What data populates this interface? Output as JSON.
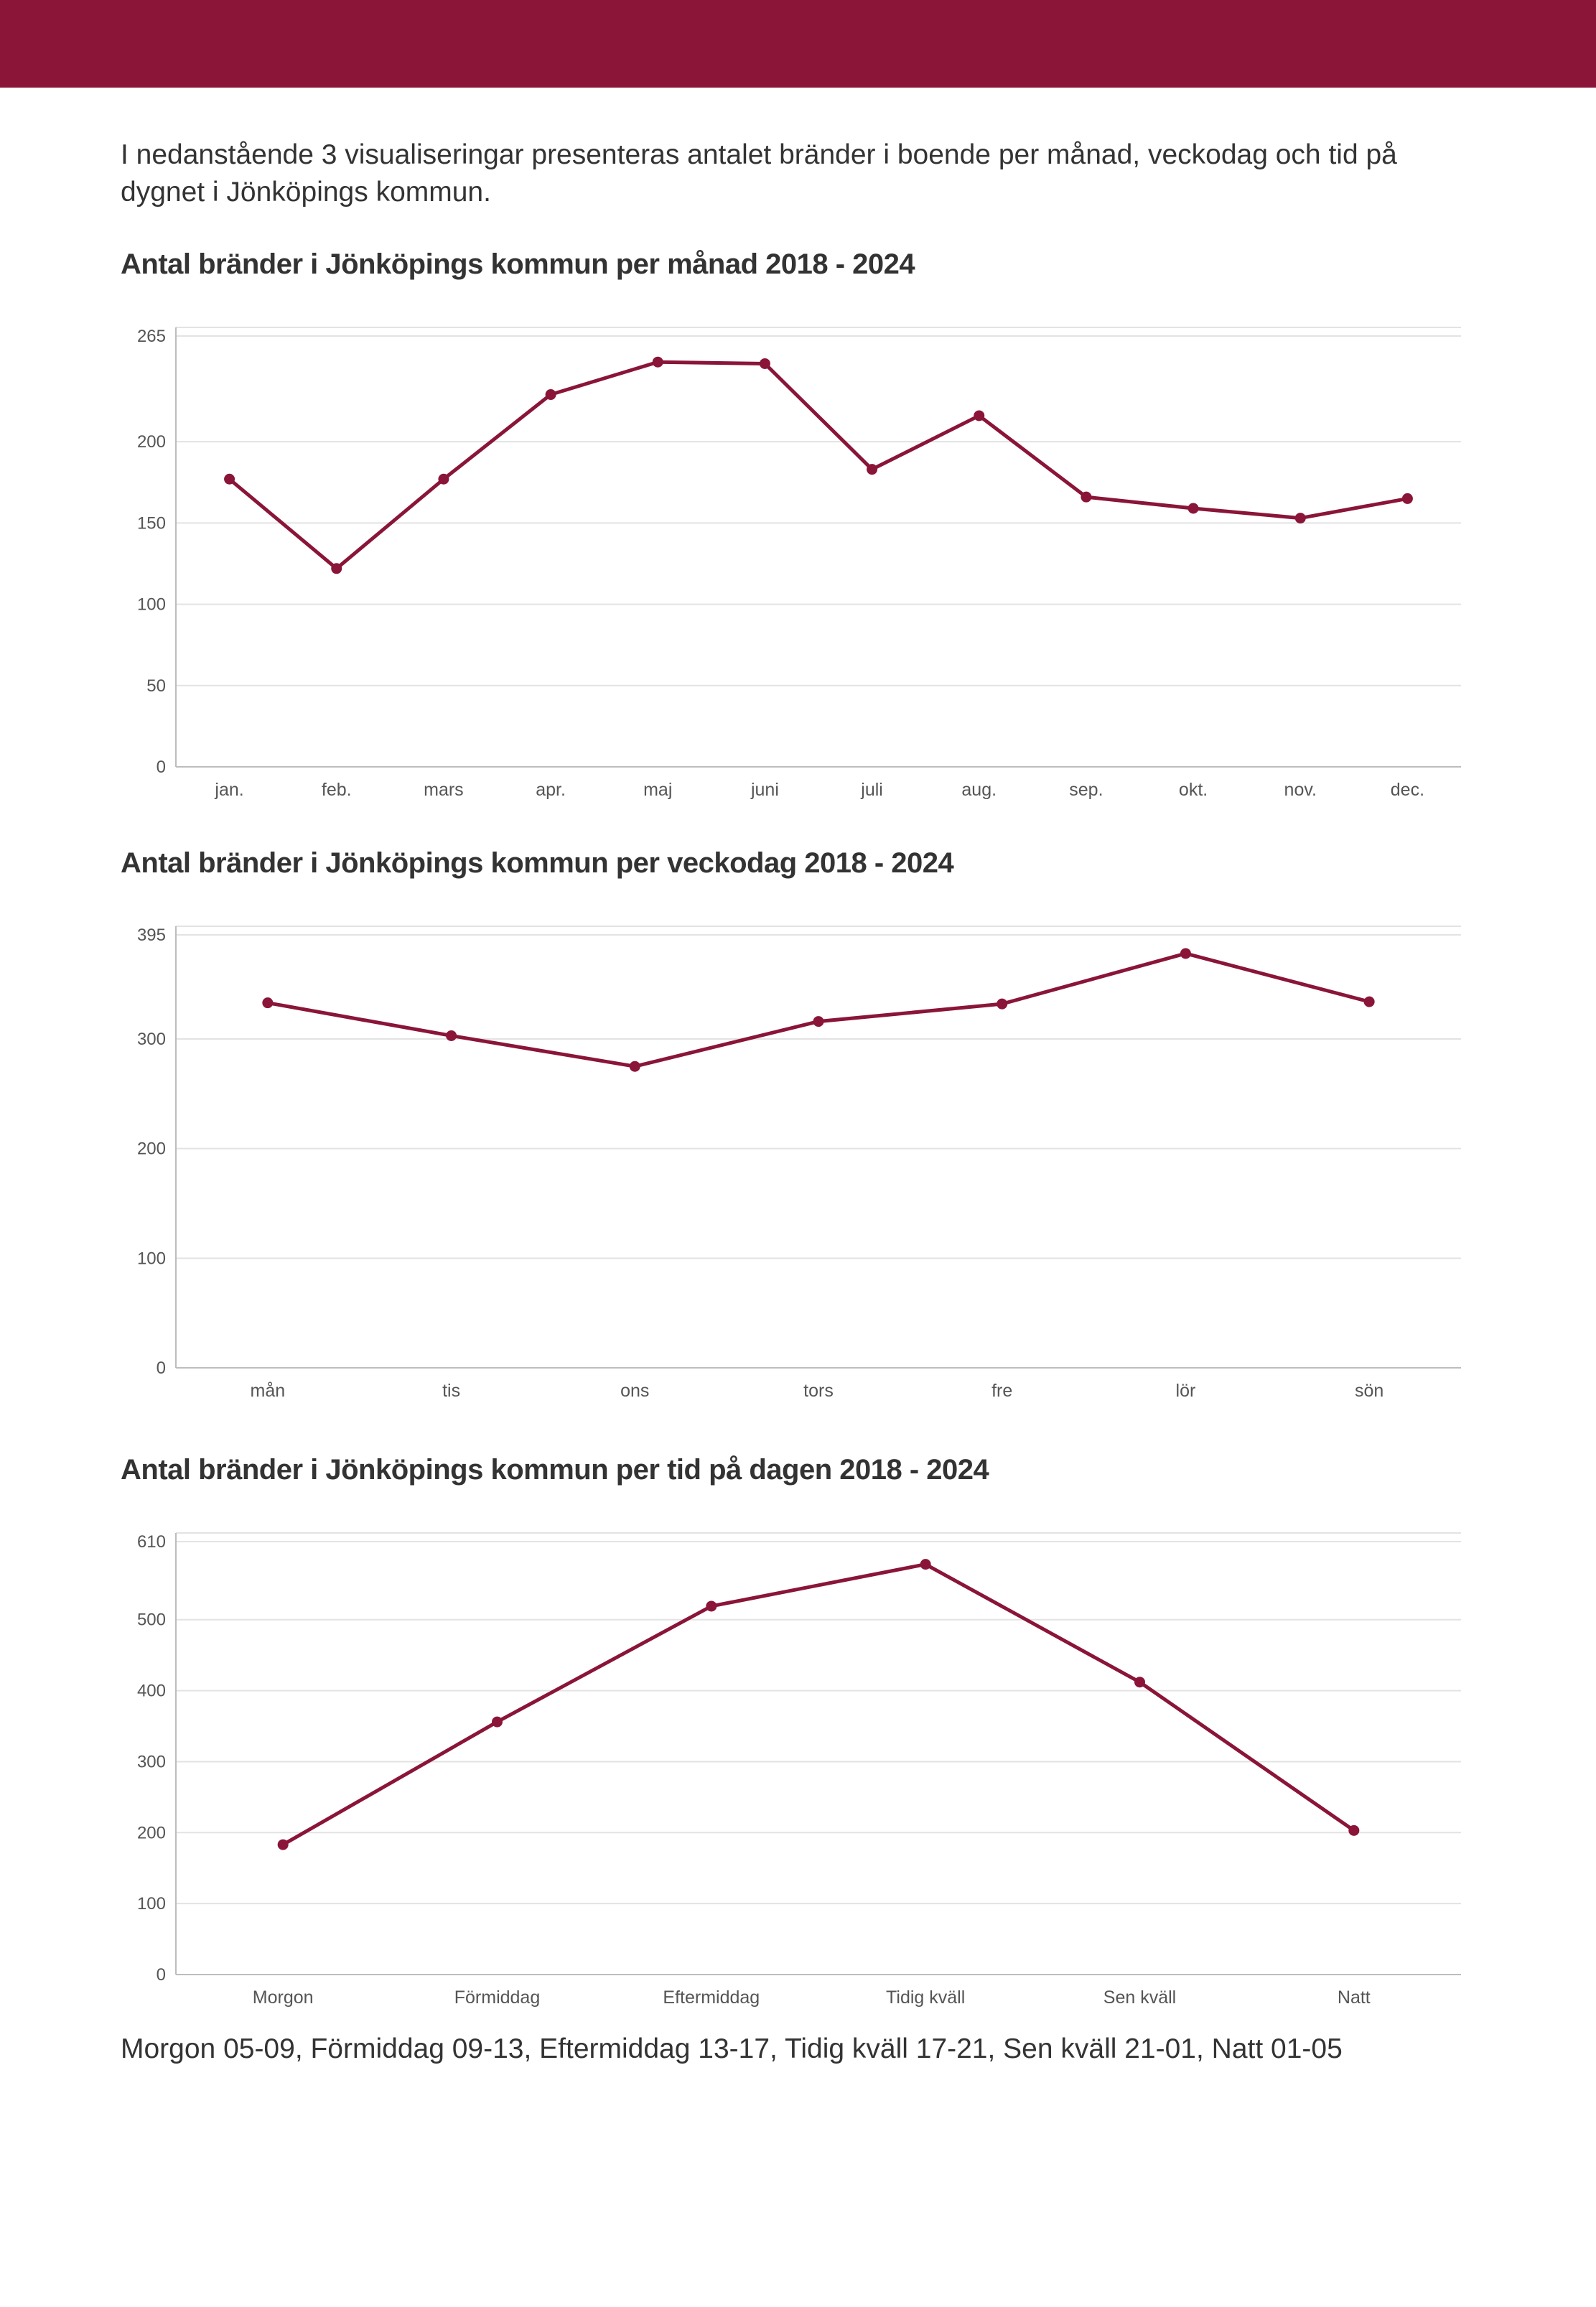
{
  "intro": "I nedanstående 3 visualiseringar presenteras antalet bränder i boende per månad, veckodag och tid på dygnet i Jönköpings kommun.",
  "colors": {
    "accent": "#8a1538",
    "line": "#8a1538",
    "grid": "#e3e3e3",
    "axis": "#bdbdbd"
  },
  "footnote": "Morgon 05-09, Förmiddag 09-13, Eftermiddag 13-17, Tidig kväll 17-21, Sen kväll 21-01, Natt 01-05",
  "chart_data": [
    {
      "type": "line",
      "title": "Antal bränder i Jönköpings kommun per månad 2018 - 2024",
      "categories": [
        "jan.",
        "feb.",
        "mars",
        "apr.",
        "maj",
        "juni",
        "juli",
        "aug.",
        "sep.",
        "okt.",
        "nov.",
        "dec."
      ],
      "values": [
        177,
        122,
        177,
        229,
        249,
        248,
        183,
        216,
        166,
        159,
        153,
        165
      ],
      "yticks": [
        0,
        50,
        100,
        150,
        200,
        265
      ],
      "ylim": [
        0,
        265
      ],
      "grid": true
    },
    {
      "type": "line",
      "title": "Antal bränder i Jönköpings kommun per veckodag 2018 - 2024",
      "categories": [
        "mån",
        "tis",
        "ons",
        "tors",
        "fre",
        "lör",
        "sön"
      ],
      "values": [
        333,
        303,
        275,
        316,
        332,
        378,
        334
      ],
      "yticks": [
        0,
        100,
        200,
        300,
        395
      ],
      "ylim": [
        0,
        395
      ],
      "grid": true
    },
    {
      "type": "line",
      "title": "Antal bränder i Jönköpings kommun per tid på dagen 2018 - 2024",
      "categories": [
        "Morgon",
        "Förmiddag",
        "Eftermiddag",
        "Tidig kväll",
        "Sen kväll",
        "Natt"
      ],
      "values": [
        183,
        356,
        519,
        578,
        412,
        203
      ],
      "yticks": [
        0,
        100,
        200,
        300,
        400,
        500,
        610
      ],
      "ylim": [
        0,
        610
      ],
      "grid": true
    }
  ]
}
